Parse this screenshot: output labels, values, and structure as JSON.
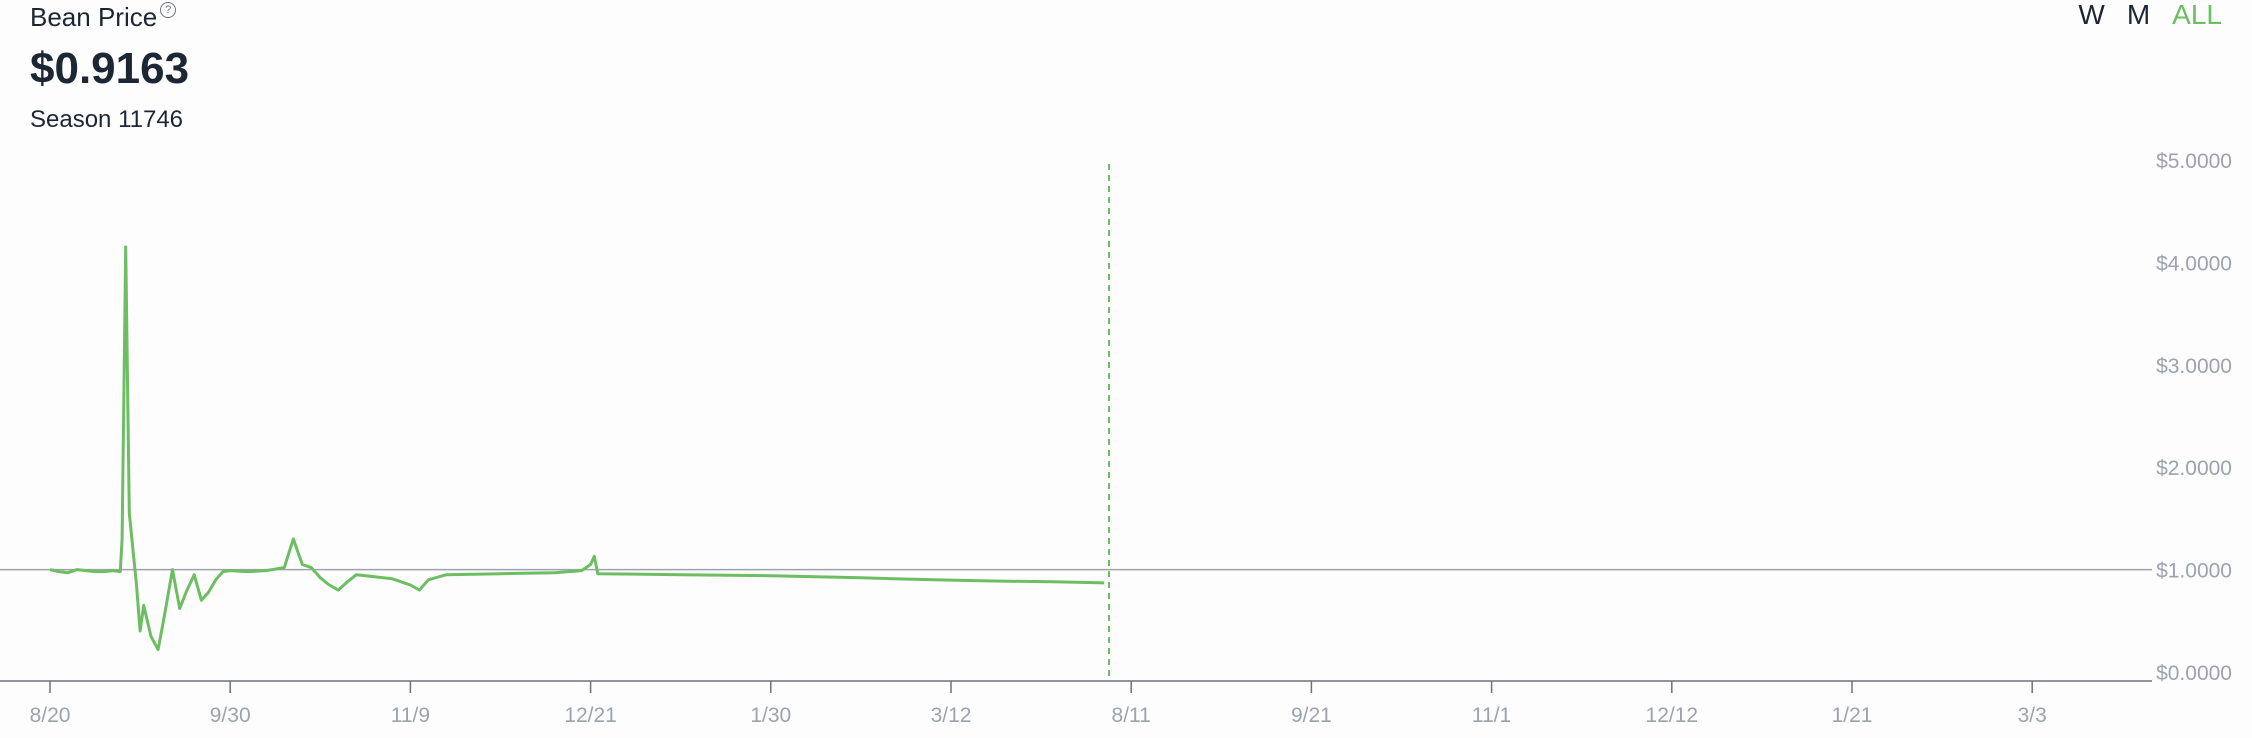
{
  "header": {
    "title": "Bean Price",
    "help_icon": "?",
    "price": "$0.9163",
    "season": "Season 11746"
  },
  "range_selector": [
    {
      "label": "W",
      "active": false
    },
    {
      "label": "M",
      "active": false
    },
    {
      "label": "ALL",
      "active": true
    }
  ],
  "colors": {
    "line": "#6dbd63",
    "reference": "#9ca3af",
    "text": "#1c2635",
    "axis_text": "#9ca3af"
  },
  "chart_data": {
    "type": "line",
    "title": "Bean Price",
    "xlabel": "",
    "ylabel": "",
    "ylim": [
      0,
      5
    ],
    "reference_line": 1.0,
    "y_ticks": [
      "$5.0000",
      "$4.0000",
      "$3.0000",
      "$2.0000",
      "$1.0000",
      "$0.0000"
    ],
    "x_ticks": [
      "8/20",
      "9/30",
      "11/9",
      "12/21",
      "1/30",
      "3/12",
      "8/11",
      "9/21",
      "11/1",
      "12/12",
      "1/21",
      "3/3"
    ],
    "series": [
      {
        "values": [
          [
            0,
            1.0
          ],
          [
            0.05,
            0.98
          ],
          [
            0.1,
            0.97
          ],
          [
            0.15,
            1.0
          ],
          [
            0.2,
            0.99
          ],
          [
            0.25,
            0.98
          ],
          [
            0.3,
            0.98
          ],
          [
            0.35,
            0.99
          ],
          [
            0.39,
            0.98
          ],
          [
            0.4,
            1.3
          ],
          [
            0.42,
            4.15
          ],
          [
            0.44,
            1.55
          ],
          [
            0.46,
            1.2
          ],
          [
            0.48,
            0.85
          ],
          [
            0.5,
            0.4
          ],
          [
            0.52,
            0.65
          ],
          [
            0.56,
            0.35
          ],
          [
            0.6,
            0.22
          ],
          [
            0.63,
            0.5
          ],
          [
            0.66,
            0.8
          ],
          [
            0.68,
            1.0
          ],
          [
            0.72,
            0.62
          ],
          [
            0.76,
            0.8
          ],
          [
            0.8,
            0.95
          ],
          [
            0.84,
            0.7
          ],
          [
            0.88,
            0.78
          ],
          [
            0.92,
            0.9
          ],
          [
            0.96,
            0.98
          ],
          [
            1.0,
            0.99
          ],
          [
            1.1,
            0.98
          ],
          [
            1.2,
            0.99
          ],
          [
            1.3,
            1.02
          ],
          [
            1.35,
            1.3
          ],
          [
            1.4,
            1.05
          ],
          [
            1.45,
            1.02
          ],
          [
            1.5,
            0.92
          ],
          [
            1.55,
            0.85
          ],
          [
            1.6,
            0.8
          ],
          [
            1.65,
            0.88
          ],
          [
            1.7,
            0.95
          ],
          [
            1.8,
            0.93
          ],
          [
            1.9,
            0.91
          ],
          [
            1.95,
            0.88
          ],
          [
            2.0,
            0.85
          ],
          [
            2.05,
            0.8
          ],
          [
            2.1,
            0.9
          ],
          [
            2.2,
            0.95
          ],
          [
            2.5,
            0.96
          ],
          [
            2.8,
            0.97
          ],
          [
            2.95,
            0.99
          ],
          [
            3.0,
            1.05
          ],
          [
            3.02,
            1.13
          ],
          [
            3.04,
            0.96
          ],
          [
            3.5,
            0.95
          ],
          [
            4.0,
            0.94
          ],
          [
            4.5,
            0.92
          ],
          [
            4.9,
            0.9
          ],
          [
            5.2,
            0.89
          ],
          [
            5.6,
            0.88
          ],
          [
            5.85,
            0.87
          ]
        ]
      }
    ]
  }
}
